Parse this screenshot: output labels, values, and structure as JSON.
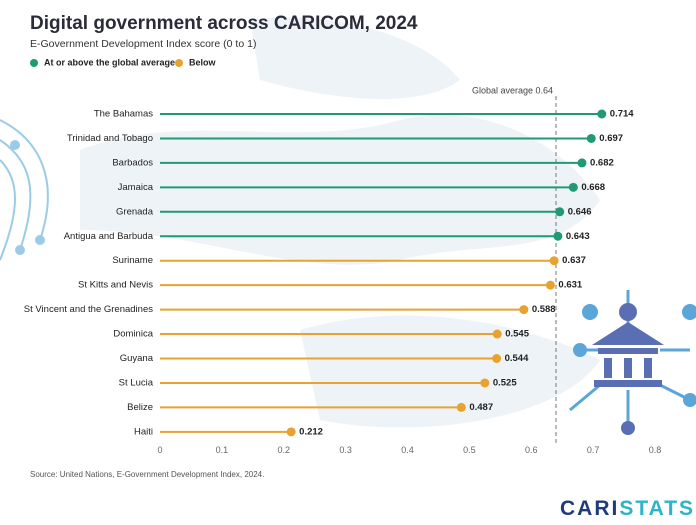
{
  "chart_data": {
    "type": "lollipop",
    "title": "Digital government across CARICOM, 2024",
    "subtitle": "E-Government Development Index score (0 to 1)",
    "categories": [
      "The Bahamas",
      "Trinidad and Tobago",
      "Barbados",
      "Jamaica",
      "Grenada",
      "Antigua and Barbuda",
      "Suriname",
      "St Kitts and Nevis",
      "St Vincent and the Grenadines",
      "Dominica",
      "Guyana",
      "St Lucia",
      "Belize",
      "Haiti"
    ],
    "series": [
      {
        "name": "At or above the global average",
        "color": "#1f9a74",
        "values": [
          0.714,
          0.697,
          0.682,
          0.668,
          0.646,
          0.643,
          null,
          null,
          null,
          null,
          null,
          null,
          null,
          null
        ]
      },
      {
        "name": "Below",
        "color": "#e8a230",
        "values": [
          null,
          null,
          null,
          null,
          null,
          null,
          0.637,
          0.631,
          0.588,
          0.545,
          0.544,
          0.525,
          0.487,
          0.212
        ]
      }
    ],
    "xlim": [
      0,
      0.8
    ],
    "xticks": [
      0,
      0.1,
      0.2,
      0.3,
      0.4,
      0.5,
      0.6,
      0.7,
      0.8
    ],
    "reference_line": {
      "value": 0.64,
      "label": "Global average 0.64"
    },
    "source": "Source: United Nations, E-Government Development Index, 2024.",
    "logo": [
      "CARI",
      "STATS"
    ]
  }
}
